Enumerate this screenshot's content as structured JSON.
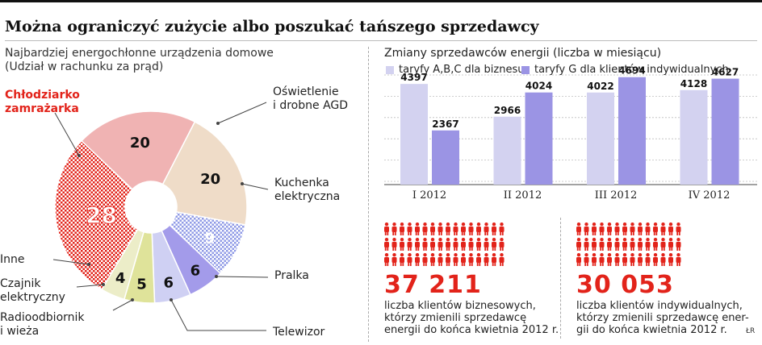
{
  "headline": "Można ograniczyć zużycie albo poszukać tańszego sprzedawcy",
  "left_subtitle": "Najbardziej energochłonne urządzenia domowe\n(Udział w rachunku za prąd)",
  "right_title": "Zmiany sprzedawców energii  (liczba w miesiącu)",
  "stats": [
    {
      "value": "37 211",
      "text": "liczba klientów biznesowych,\nktórzy zmienili sprzedawcę\nenergii do końca kwietnia 2012 r."
    },
    {
      "value": "30 053",
      "text": "liczba klientów indywidualnych,\nktórzy zmienili sprzedawcę ener-\ngii do końca kwietnia 2012 r."
    }
  ],
  "credit": "ŁR",
  "colors": {
    "accent": "#e2231a",
    "business": "#d3d2f0",
    "individual": "#9b94e4"
  },
  "chart_data": [
    {
      "type": "pie",
      "subtitle": "Najbardziej energochłonne urządzenia domowe (Udział w rachunku za prąd)",
      "slices": [
        {
          "label": "Oświetlenie\ni drobne AGD",
          "value": 20,
          "color": "#f0b3b3"
        },
        {
          "label": "Kuchenka\nelektryczna",
          "value": 20,
          "color": "#efdcc8"
        },
        {
          "label": "Pralka",
          "value": 9,
          "color": "#9fa8ea"
        },
        {
          "label": "Telewizor",
          "value": 6,
          "color": "#a39bea"
        },
        {
          "label": "Radioodbiornik\ni wieża",
          "value": 6,
          "color": "#cfd0f3"
        },
        {
          "label": "Czajnik\nelektryczny",
          "value": 5,
          "color": "#dfe39a"
        },
        {
          "label": "Inne",
          "value": 4,
          "color": "#ecedc8"
        },
        {
          "label": "Chłodziarko\nzamrażarka",
          "value": 28,
          "color": "#e2231a"
        }
      ]
    },
    {
      "type": "bar",
      "title": "Zmiany sprzedawców energii  (liczba w miesiącu)",
      "categories": [
        "I 2012",
        "II 2012",
        "III 2012",
        "IV 2012"
      ],
      "series": [
        {
          "name": "taryfy A,B,C dla biznesu",
          "values": [
            4397,
            2966,
            4022,
            4128
          ],
          "color": "#d3d2f0"
        },
        {
          "name": "taryfy G dla klientów indywidualnych",
          "values": [
            2367,
            4024,
            4694,
            4627
          ],
          "color": "#9b94e4"
        }
      ],
      "ylim": [
        0,
        5000
      ],
      "legend": "top"
    }
  ]
}
